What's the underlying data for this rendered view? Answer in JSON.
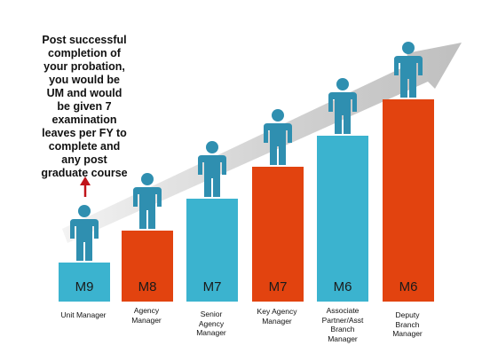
{
  "note": {
    "lines": [
      "Post successful",
      "completion of",
      "your probation,",
      "you would be",
      "UM and would",
      "be given 7",
      "examination",
      "leaves per FY  to",
      "complete and",
      "any post",
      "graduate course"
    ]
  },
  "levels": [
    {
      "grade": "M9",
      "role": [
        "Unit Manager"
      ],
      "color": "#3bb3cf"
    },
    {
      "grade": "M8",
      "role": [
        "Agency",
        "Manager"
      ],
      "color": "#e2430f"
    },
    {
      "grade": "M7",
      "role": [
        "Senior",
        "Agency",
        "Manager"
      ],
      "color": "#3bb3cf"
    },
    {
      "grade": "M7",
      "role": [
        "Key Agency",
        "Manager"
      ],
      "color": "#e2430f"
    },
    {
      "grade": "M6",
      "role": [
        "Associate",
        "Partner/Asst",
        "Branch",
        "Manager"
      ],
      "color": "#3bb3cf"
    },
    {
      "grade": "M6",
      "role": [
        "Deputy",
        "Branch",
        "Manager"
      ],
      "color": "#e2430f"
    }
  ],
  "colors": {
    "person": "#2f8fb0",
    "arrow": "#c9c9c9",
    "up_arrow": "#c0141a"
  },
  "icons": {
    "person": "person-icon",
    "up_arrow": "up-arrow-icon",
    "growth_arrow": "growth-arrow-icon"
  }
}
